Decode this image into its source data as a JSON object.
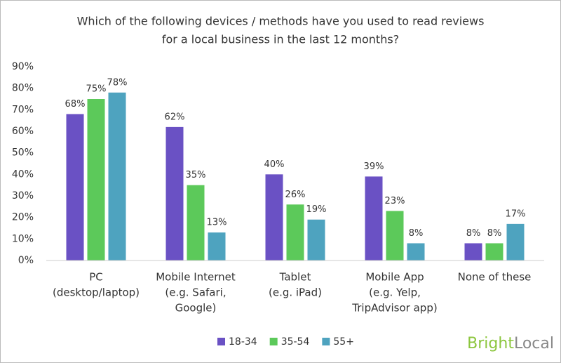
{
  "chart_data": {
    "type": "bar",
    "title": [
      "Which of the following devices / methods have you used to read reviews",
      "for a local business in the last 12 months?"
    ],
    "categories": [
      [
        "PC",
        "(desktop/laptop)"
      ],
      [
        "Mobile Internet",
        "(e.g. Safari,",
        "Google)"
      ],
      [
        "Tablet",
        "(e.g. iPad)"
      ],
      [
        "Mobile App",
        "(e.g. Yelp,",
        "TripAdvisor app)"
      ],
      [
        "None of these"
      ]
    ],
    "series": [
      {
        "name": "18-34",
        "color": "#6a51c4",
        "values": [
          68,
          62,
          40,
          39,
          8
        ],
        "value_labels": [
          "68%",
          "62%",
          "40%",
          "39%",
          "8%"
        ]
      },
      {
        "name": "35-54",
        "color": "#5cc95a",
        "values": [
          75,
          35,
          26,
          23,
          8
        ],
        "value_labels": [
          "75%",
          "35%",
          "26%",
          "23%",
          "8%"
        ]
      },
      {
        "name": "55+",
        "color": "#4ea3bf",
        "values": [
          78,
          13,
          19,
          8,
          17
        ],
        "value_labels": [
          "78%",
          "13%",
          "19%",
          "8%",
          "17%"
        ]
      }
    ],
    "ylim": [
      0,
      90
    ],
    "yticks": [
      {
        "value": 0,
        "label": "0%"
      },
      {
        "value": 10,
        "label": "10%"
      },
      {
        "value": 20,
        "label": "20%"
      },
      {
        "value": 30,
        "label": "30%"
      },
      {
        "value": 40,
        "label": "40%"
      },
      {
        "value": 50,
        "label": "50%"
      },
      {
        "value": 60,
        "label": "60%"
      },
      {
        "value": 70,
        "label": "70%"
      },
      {
        "value": 80,
        "label": "80%"
      },
      {
        "value": 90,
        "label": "90%"
      }
    ],
    "grid": false,
    "legend": "bottom"
  },
  "logo": [
    "Bright",
    "Local"
  ]
}
